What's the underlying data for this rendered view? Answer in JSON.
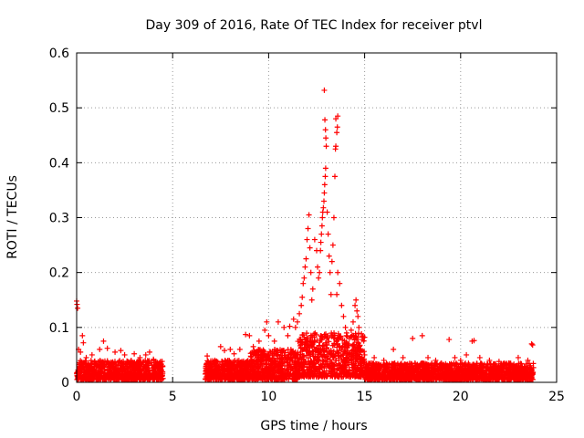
{
  "chart_data": {
    "type": "scatter",
    "title": "Day 309 of 2016, Rate Of TEC Index for receiver ptvl",
    "xlabel": "GPS time / hours",
    "ylabel": "ROTI / TECUs",
    "xlim": [
      0,
      25
    ],
    "ylim": [
      0,
      0.6
    ],
    "xticks": [
      0,
      5,
      10,
      15,
      20,
      25
    ],
    "yticks": [
      0,
      0.1,
      0.2,
      0.3,
      0.4,
      0.5,
      0.6
    ],
    "ytick_labels": [
      "0",
      "0.1",
      "0.2",
      "0.3",
      "0.4",
      "0.5",
      "0.6"
    ],
    "grid": true,
    "marker": "+",
    "series_color": "#ff0000",
    "points": [
      [
        0.0,
        0.148
      ],
      [
        0.02,
        0.142
      ],
      [
        0.05,
        0.135
      ],
      [
        0.1,
        0.06
      ],
      [
        0.2,
        0.055
      ],
      [
        0.3,
        0.085
      ],
      [
        0.35,
        0.072
      ],
      [
        0.5,
        0.045
      ],
      [
        0.8,
        0.05
      ],
      [
        1.2,
        0.06
      ],
      [
        1.4,
        0.075
      ],
      [
        1.6,
        0.062
      ],
      [
        2.0,
        0.055
      ],
      [
        2.3,
        0.058
      ],
      [
        2.5,
        0.05
      ],
      [
        3.0,
        0.052
      ],
      [
        3.3,
        0.045
      ],
      [
        3.6,
        0.05
      ],
      [
        3.8,
        0.055
      ],
      [
        4.0,
        0.042
      ],
      [
        4.3,
        0.035
      ],
      [
        6.8,
        0.048
      ],
      [
        7.2,
        0.04
      ],
      [
        7.5,
        0.065
      ],
      [
        7.7,
        0.058
      ],
      [
        8.0,
        0.06
      ],
      [
        8.2,
        0.052
      ],
      [
        8.5,
        0.06
      ],
      [
        8.8,
        0.087
      ],
      [
        9.0,
        0.085
      ],
      [
        9.2,
        0.065
      ],
      [
        9.5,
        0.075
      ],
      [
        9.8,
        0.095
      ],
      [
        9.9,
        0.11
      ],
      [
        10.0,
        0.085
      ],
      [
        10.3,
        0.075
      ],
      [
        10.5,
        0.11
      ],
      [
        10.8,
        0.1
      ],
      [
        11.0,
        0.085
      ],
      [
        11.1,
        0.102
      ],
      [
        11.3,
        0.115
      ],
      [
        11.4,
        0.1
      ],
      [
        11.5,
        0.11
      ],
      [
        11.6,
        0.125
      ],
      [
        11.7,
        0.14
      ],
      [
        11.75,
        0.155
      ],
      [
        11.8,
        0.18
      ],
      [
        11.85,
        0.19
      ],
      [
        11.9,
        0.21
      ],
      [
        11.95,
        0.225
      ],
      [
        12.0,
        0.26
      ],
      [
        12.05,
        0.28
      ],
      [
        12.1,
        0.305
      ],
      [
        12.15,
        0.245
      ],
      [
        12.2,
        0.2
      ],
      [
        12.25,
        0.15
      ],
      [
        12.3,
        0.17
      ],
      [
        12.4,
        0.26
      ],
      [
        12.5,
        0.24
      ],
      [
        12.55,
        0.21
      ],
      [
        12.6,
        0.19
      ],
      [
        12.65,
        0.2
      ],
      [
        12.7,
        0.24
      ],
      [
        12.72,
        0.255
      ],
      [
        12.75,
        0.27
      ],
      [
        12.78,
        0.285
      ],
      [
        12.8,
        0.3
      ],
      [
        12.82,
        0.31
      ],
      [
        12.85,
        0.318
      ],
      [
        12.88,
        0.33
      ],
      [
        12.9,
        0.345
      ],
      [
        12.92,
        0.36
      ],
      [
        12.95,
        0.375
      ],
      [
        12.97,
        0.39
      ],
      [
        13.0,
        0.43
      ],
      [
        12.98,
        0.445
      ],
      [
        12.96,
        0.46
      ],
      [
        12.93,
        0.478
      ],
      [
        12.9,
        0.532
      ],
      [
        13.05,
        0.31
      ],
      [
        13.1,
        0.27
      ],
      [
        13.15,
        0.23
      ],
      [
        13.2,
        0.2
      ],
      [
        13.25,
        0.16
      ],
      [
        13.3,
        0.22
      ],
      [
        13.35,
        0.25
      ],
      [
        13.4,
        0.3
      ],
      [
        13.45,
        0.375
      ],
      [
        13.48,
        0.425
      ],
      [
        13.5,
        0.43
      ],
      [
        13.55,
        0.455
      ],
      [
        13.58,
        0.465
      ],
      [
        13.6,
        0.485
      ],
      [
        13.5,
        0.48
      ],
      [
        13.55,
        0.16
      ],
      [
        13.6,
        0.2
      ],
      [
        13.7,
        0.18
      ],
      [
        13.8,
        0.14
      ],
      [
        13.9,
        0.12
      ],
      [
        14.0,
        0.1
      ],
      [
        14.05,
        0.085
      ],
      [
        14.1,
        0.07
      ],
      [
        14.2,
        0.08
      ],
      [
        14.3,
        0.095
      ],
      [
        14.4,
        0.11
      ],
      [
        14.5,
        0.14
      ],
      [
        14.55,
        0.15
      ],
      [
        14.6,
        0.13
      ],
      [
        14.65,
        0.12
      ],
      [
        14.7,
        0.1
      ],
      [
        14.8,
        0.06
      ],
      [
        15.0,
        0.05
      ],
      [
        15.5,
        0.045
      ],
      [
        16.0,
        0.04
      ],
      [
        16.5,
        0.06
      ],
      [
        17.0,
        0.045
      ],
      [
        17.5,
        0.08
      ],
      [
        18.0,
        0.085
      ],
      [
        18.3,
        0.045
      ],
      [
        18.7,
        0.04
      ],
      [
        19.0,
        0.035
      ],
      [
        19.4,
        0.078
      ],
      [
        19.7,
        0.045
      ],
      [
        20.0,
        0.04
      ],
      [
        20.3,
        0.05
      ],
      [
        20.6,
        0.075
      ],
      [
        20.7,
        0.076
      ],
      [
        21.0,
        0.045
      ],
      [
        21.5,
        0.04
      ],
      [
        22.0,
        0.038
      ],
      [
        22.5,
        0.035
      ],
      [
        23.0,
        0.045
      ],
      [
        23.5,
        0.04
      ],
      [
        23.7,
        0.07
      ],
      [
        23.75,
        0.068
      ]
    ],
    "baseline_segments": [
      {
        "x_range": [
          0.0,
          4.5
        ],
        "y_range": [
          0.005,
          0.04
        ]
      },
      {
        "x_range": [
          6.7,
          9.0
        ],
        "y_range": [
          0.005,
          0.04
        ]
      },
      {
        "x_range": [
          9.0,
          11.5
        ],
        "y_range": [
          0.005,
          0.06
        ]
      },
      {
        "x_range": [
          11.5,
          15.0
        ],
        "y_range": [
          0.01,
          0.09
        ]
      },
      {
        "x_range": [
          15.0,
          23.8
        ],
        "y_range": [
          0.005,
          0.035
        ]
      }
    ]
  }
}
